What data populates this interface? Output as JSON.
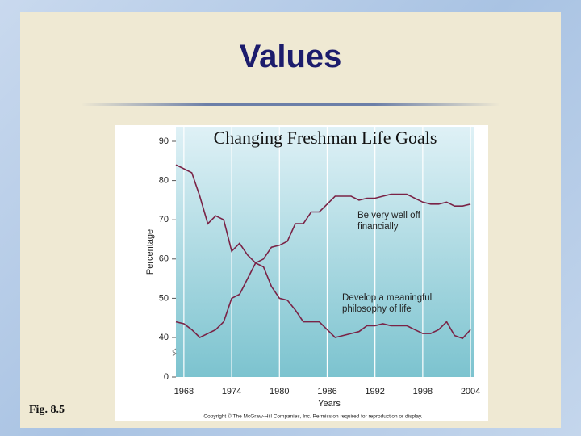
{
  "slide_title": "Values",
  "figure_label": "Fig. 8.5",
  "chart_data": {
    "type": "line",
    "title": "Changing Freshman Life Goals",
    "y_label": "Percentage",
    "x_label": "Years",
    "caption": "Copyright © The McGraw-Hill Companies, Inc. Permission required for reproduction or display.",
    "x": [
      1967,
      1968,
      1969,
      1970,
      1971,
      1972,
      1973,
      1974,
      1975,
      1976,
      1977,
      1978,
      1979,
      1980,
      1981,
      1982,
      1983,
      1984,
      1985,
      1986,
      1987,
      1988,
      1989,
      1990,
      1991,
      1992,
      1993,
      1994,
      1995,
      1996,
      1997,
      1998,
      1999,
      2000,
      2001,
      2002,
      2003,
      2004
    ],
    "series": [
      {
        "name": "Be very well off financially",
        "color": "#7a2346",
        "values": [
          44,
          43.5,
          42,
          40,
          41,
          42,
          44,
          50,
          51,
          55,
          59,
          60,
          63,
          63.5,
          64.5,
          69,
          69,
          72,
          72,
          74,
          76,
          76,
          76,
          75,
          75.5,
          75.5,
          76,
          76.5,
          76.5,
          76.5,
          75.5,
          74.5,
          74,
          74,
          74.5,
          73.5,
          73.5,
          74
        ]
      },
      {
        "name": "Develop a meaningful philosophy of life",
        "color": "#7a2346",
        "values": [
          84,
          83,
          82,
          76,
          69,
          71,
          70,
          62,
          64,
          61,
          59,
          58,
          53,
          50,
          49.5,
          47,
          44,
          44,
          44,
          42,
          40,
          40.5,
          41,
          41.5,
          43,
          43,
          43.5,
          43,
          43,
          43,
          42,
          41,
          41,
          42,
          44,
          40.5,
          39,
          42
        ]
      }
    ],
    "xlim": [
      1967,
      2004.5
    ],
    "xticks": [
      1968,
      1974,
      1980,
      1986,
      1992,
      1998,
      2004
    ],
    "ylim": [
      0,
      90
    ],
    "y_axis_break": [
      0,
      40
    ],
    "yticks": [
      0,
      40,
      50,
      60,
      70,
      80,
      90
    ],
    "grid": true
  }
}
